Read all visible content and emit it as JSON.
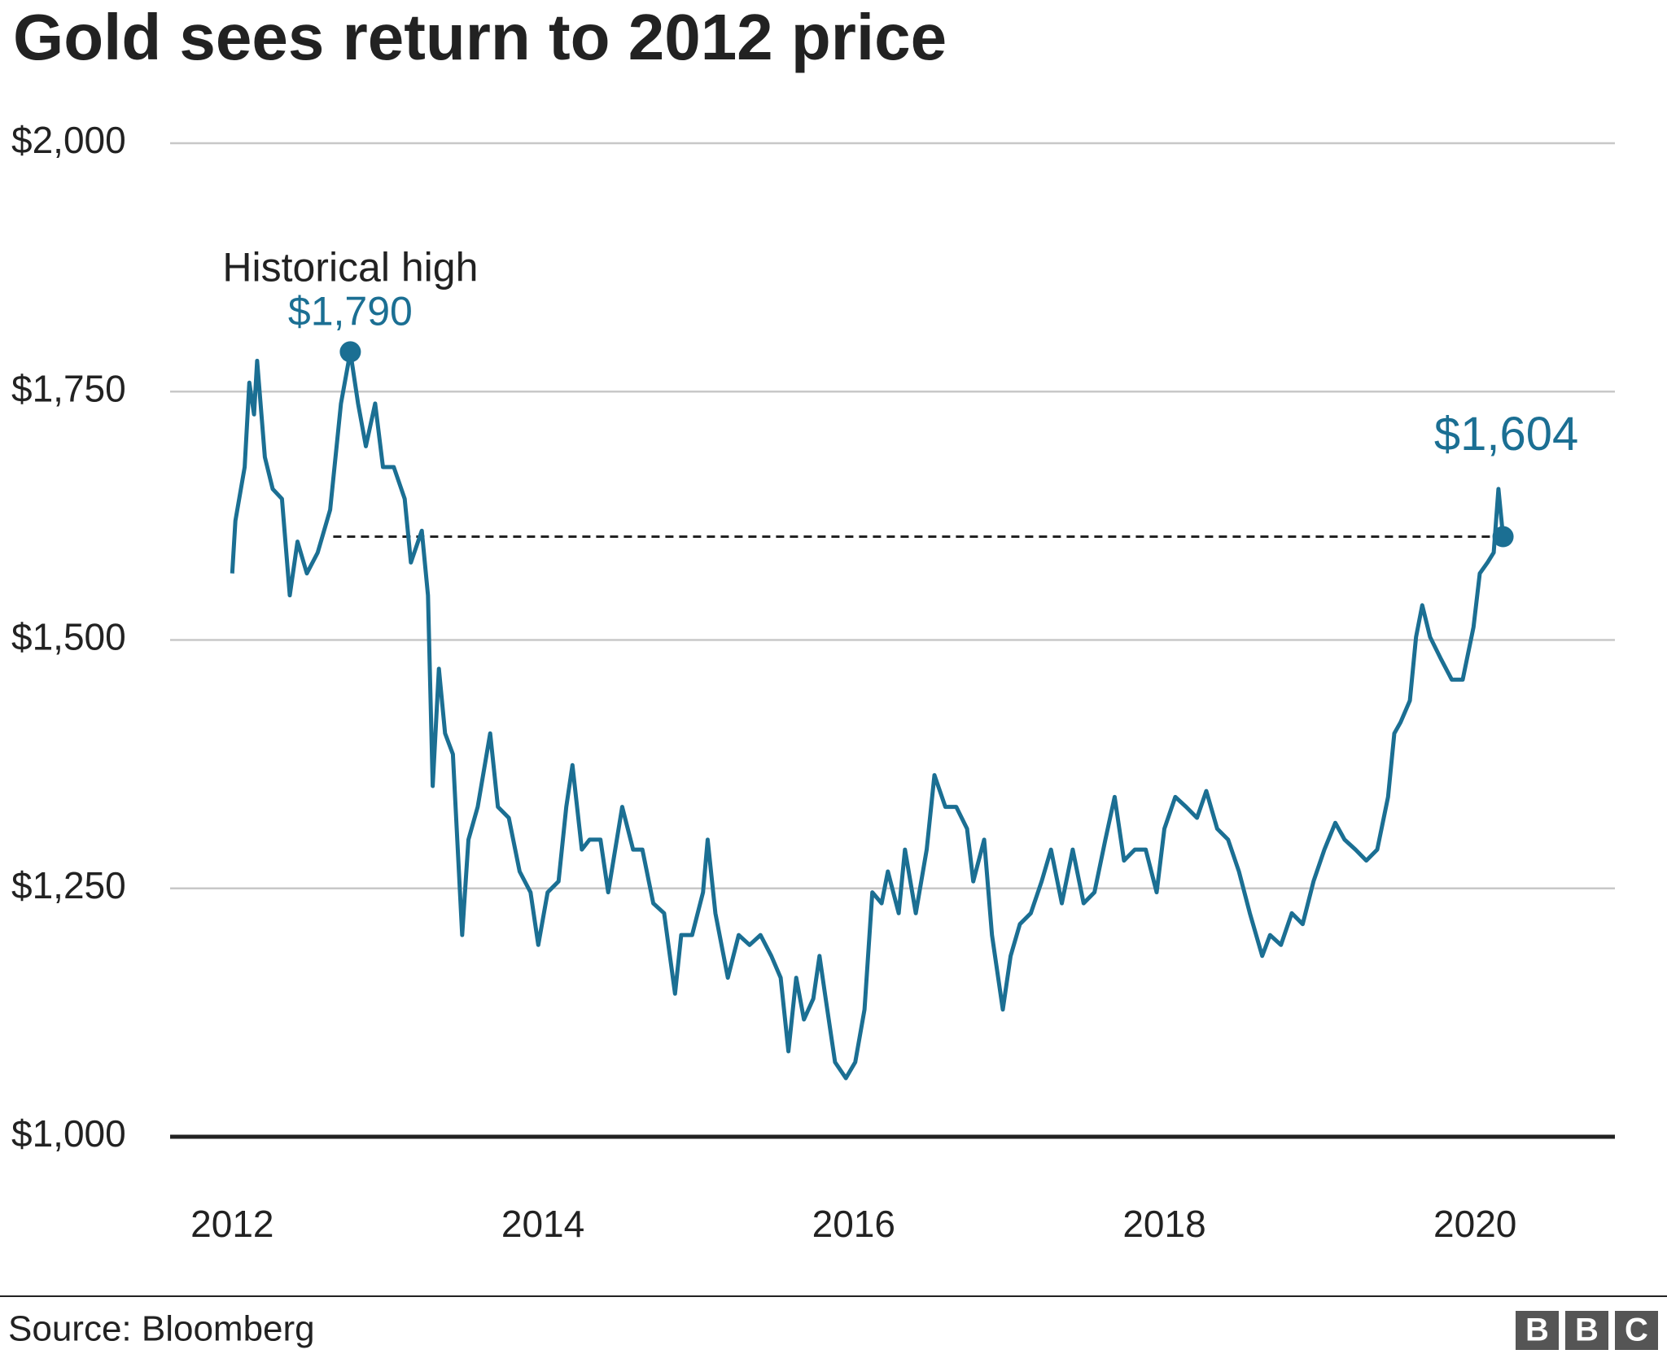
{
  "chart_data": {
    "type": "line",
    "title": "Gold sees return to 2012 price",
    "source": "Source: Bloomberg",
    "logo": [
      "B",
      "B",
      "C"
    ],
    "xlim": [
      2011.6,
      2020.9
    ],
    "xticks": [
      2012,
      2014,
      2016,
      2018,
      2020
    ],
    "ylim": [
      1000,
      2000
    ],
    "yticks": [
      {
        "value": 1000,
        "label": "$1,000"
      },
      {
        "value": 1250,
        "label": "$1,250"
      },
      {
        "value": 1500,
        "label": "$1,500"
      },
      {
        "value": 1750,
        "label": "$1,750"
      },
      {
        "value": 2000,
        "label": "$2,000"
      }
    ],
    "grid": true,
    "series": [
      {
        "color": "#1b6f93",
        "x": [
          2012.0,
          2012.02,
          2012.08,
          2012.11,
          2012.14,
          2012.16,
          2012.21,
          2012.26,
          2012.32,
          2012.37,
          2012.42,
          2012.48,
          2012.55,
          2012.63,
          2012.7,
          2012.76,
          2012.81,
          2012.86,
          2012.92,
          2012.97,
          2013.04,
          2013.11,
          2013.15,
          2013.22,
          2013.26,
          2013.29,
          2013.33,
          2013.37,
          2013.42,
          2013.48,
          2013.52,
          2013.58,
          2013.66,
          2013.71,
          2013.78,
          2013.85,
          2013.92,
          2013.97,
          2014.03,
          2014.1,
          2014.15,
          2014.19,
          2014.25,
          2014.3,
          2014.37,
          2014.42,
          2014.51,
          2014.58,
          2014.64,
          2014.71,
          2014.78,
          2014.85,
          2014.89,
          2014.96,
          2015.03,
          2015.06,
          2015.11,
          2015.19,
          2015.26,
          2015.33,
          2015.4,
          2015.47,
          2015.53,
          2015.58,
          2015.63,
          2015.68,
          2015.74,
          2015.78,
          2015.82,
          2015.88,
          2015.95,
          2016.01,
          2016.07,
          2016.12,
          2016.18,
          2016.22,
          2016.29,
          2016.33,
          2016.4,
          2016.47,
          2016.52,
          2016.59,
          2016.66,
          2016.73,
          2016.77,
          2016.84,
          2016.89,
          2016.96,
          2017.01,
          2017.07,
          2017.14,
          2017.21,
          2017.27,
          2017.34,
          2017.41,
          2017.48,
          2017.55,
          2017.62,
          2017.68,
          2017.74,
          2017.81,
          2017.88,
          2017.95,
          2018.0,
          2018.07,
          2018.14,
          2018.21,
          2018.27,
          2018.34,
          2018.41,
          2018.48,
          2018.55,
          2018.63,
          2018.68,
          2018.75,
          2018.82,
          2018.89,
          2018.96,
          2019.03,
          2019.1,
          2019.16,
          2019.23,
          2019.3,
          2019.37,
          2019.44,
          2019.48,
          2019.52,
          2019.58,
          2019.62,
          2019.66,
          2019.71,
          2019.78,
          2019.85,
          2019.92,
          2019.99,
          2020.03,
          2020.08,
          2020.12,
          2020.15,
          2020.18
        ],
        "values": [
          1567,
          1620,
          1674,
          1759,
          1727,
          1781,
          1684,
          1652,
          1642,
          1545,
          1599,
          1567,
          1588,
          1631,
          1738,
          1790,
          1738,
          1695,
          1738,
          1674,
          1674,
          1642,
          1578,
          1610,
          1545,
          1353,
          1471,
          1406,
          1385,
          1203,
          1299,
          1332,
          1406,
          1332,
          1321,
          1267,
          1246,
          1193,
          1246,
          1257,
          1332,
          1374,
          1289,
          1299,
          1299,
          1246,
          1332,
          1289,
          1289,
          1235,
          1225,
          1144,
          1203,
          1203,
          1246,
          1299,
          1225,
          1160,
          1203,
          1193,
          1203,
          1182,
          1160,
          1086,
          1160,
          1118,
          1139,
          1182,
          1139,
          1075,
          1059,
          1075,
          1128,
          1246,
          1235,
          1267,
          1225,
          1289,
          1225,
          1289,
          1364,
          1332,
          1332,
          1310,
          1257,
          1299,
          1203,
          1128,
          1182,
          1214,
          1225,
          1257,
          1289,
          1235,
          1289,
          1235,
          1246,
          1299,
          1342,
          1278,
          1289,
          1289,
          1246,
          1310,
          1342,
          1332,
          1321,
          1348,
          1310,
          1299,
          1267,
          1225,
          1182,
          1203,
          1193,
          1225,
          1214,
          1257,
          1289,
          1316,
          1299,
          1289,
          1278,
          1289,
          1342,
          1406,
          1417,
          1439,
          1503,
          1535,
          1503,
          1481,
          1460,
          1460,
          1513,
          1567,
          1578,
          1588,
          1652,
          1604
        ]
      }
    ],
    "annotations": [
      {
        "text": "Historical high",
        "x": 2012.76,
        "value": 1790,
        "value_label": "$1,790"
      },
      {
        "x": 2020.18,
        "value": 1604,
        "value_label": "$1,604"
      }
    ],
    "reference_line": {
      "y": 1604,
      "x_start": 2012.65
    }
  }
}
